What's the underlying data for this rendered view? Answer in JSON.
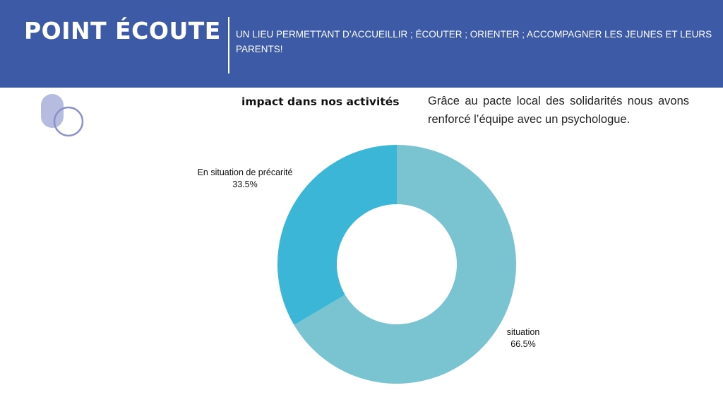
{
  "header": {
    "title": "POINT ÉCOUTE",
    "subtitle": "UN LIEU PERMETTANT D’ACCUEILLIR ; ÉCOUTER ; ORIENTER ; ACCOMPAGNER LES JEUNES ET LEURS PARENTS!"
  },
  "impact": {
    "heading": "impact dans nos activités",
    "text": "Grâce au pacte local des solidarités nous avons renforcé l’équipe avec un psychologue."
  },
  "colors": {
    "header_bg": "#3d5aa6",
    "slice_precarite": "#3bb6d6",
    "slice_situation": "#7ac4d1",
    "deco_fill": "#b6bce0",
    "deco_ring": "#8b90c9"
  },
  "chart_data": {
    "type": "pie",
    "donut": true,
    "slices": [
      {
        "label": "En situation de précarité",
        "value": 33.5,
        "display": "33.5%"
      },
      {
        "label": "situation",
        "value": 66.5,
        "display": "66.5%"
      }
    ]
  }
}
